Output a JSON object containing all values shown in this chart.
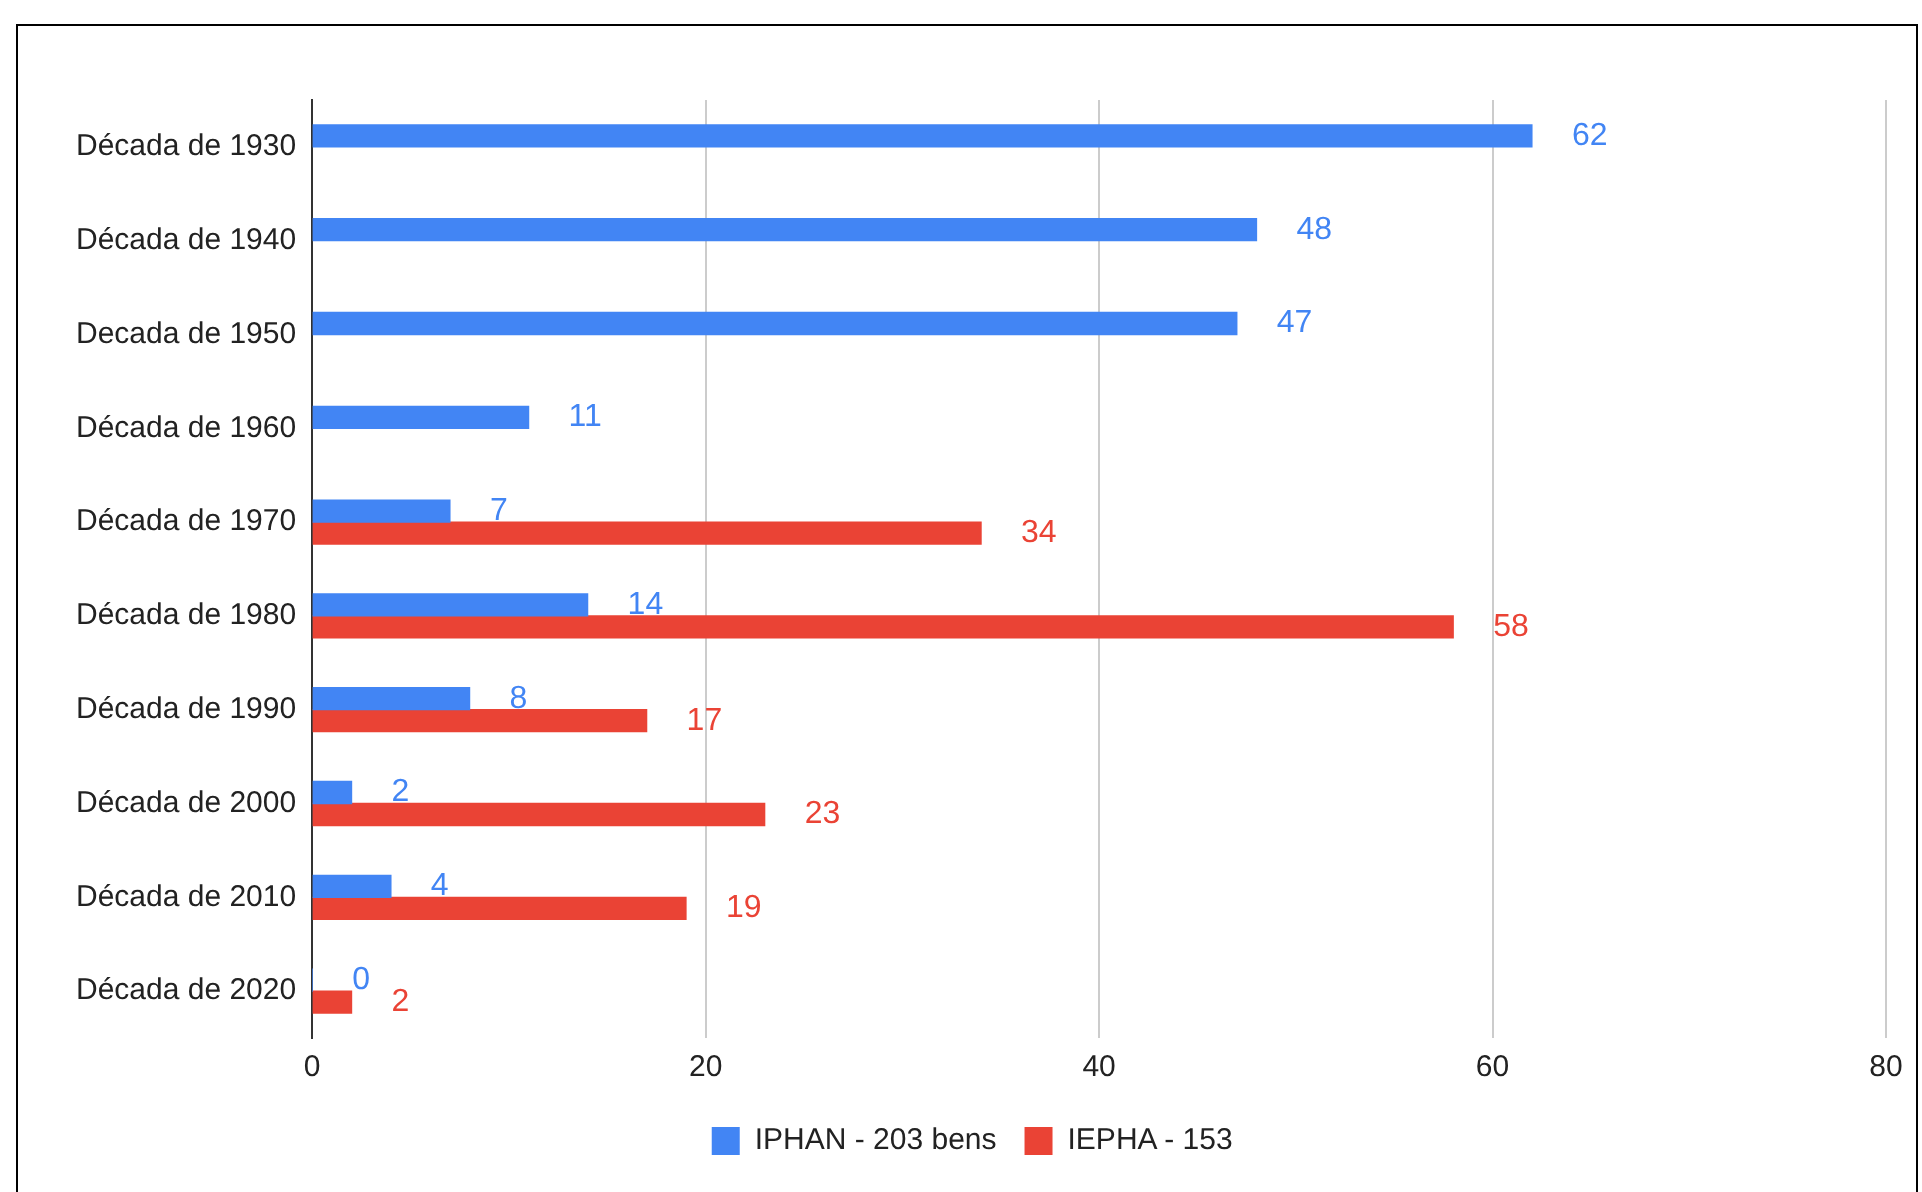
{
  "chart_data": {
    "type": "bar",
    "orientation": "horizontal",
    "categories": [
      "Década de 1930",
      "Década de 1940",
      "Decada de 1950",
      "Década de 1960",
      "Década de 1970",
      "Década de 1980",
      "Década de 1990",
      "Década de 2000",
      "Década de 2010",
      "Década de 2020"
    ],
    "series": [
      {
        "name": "IPHAN - 203 bens",
        "color": "#4285f4",
        "values": [
          62,
          48,
          47,
          11,
          7,
          14,
          8,
          2,
          4,
          0
        ]
      },
      {
        "name": "IEPHA - 153",
        "color": "#ea4335",
        "values": [
          null,
          null,
          null,
          null,
          34,
          58,
          17,
          23,
          19,
          2
        ]
      }
    ],
    "xlim": [
      0,
      80
    ],
    "xticks": [
      0,
      20,
      40,
      60,
      80
    ],
    "grid": "x",
    "legend": "bottom",
    "data_labels": true
  }
}
